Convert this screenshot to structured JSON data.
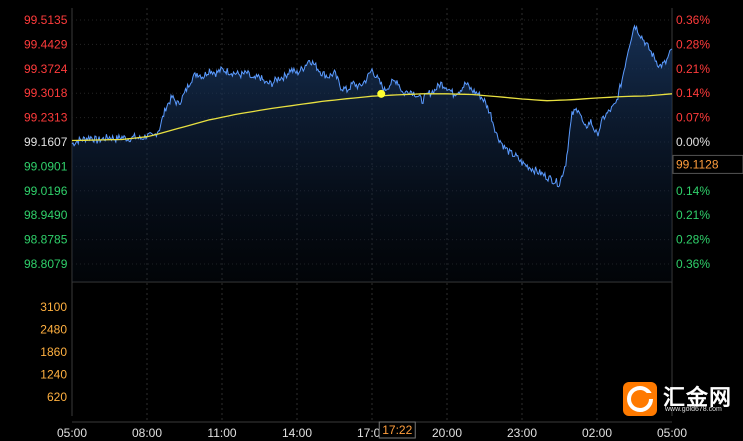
{
  "chart_data": {
    "type": "line",
    "price_axis": {
      "ticks": [
        "99.5135",
        "99.4429",
        "99.3724",
        "99.3018",
        "99.2313",
        "99.1607",
        "99.0901",
        "99.0196",
        "98.9490",
        "98.8785",
        "98.8079"
      ],
      "range": [
        98.8079,
        99.5135
      ],
      "base": 99.1607,
      "up_color": "#ff3b3b",
      "down_color": "#2fd06a",
      "base_color": "#e0e0e0"
    },
    "percent_axis": {
      "ticks": [
        "0.36%",
        "0.28%",
        "0.21%",
        "0.14%",
        "0.07%",
        "0.00%",
        "0.07%",
        "0.14%",
        "0.21%",
        "0.28%",
        "0.36%"
      ]
    },
    "current_price_label": "99.1128",
    "volume_axis": {
      "ticks": [
        "3100",
        "2480",
        "1860",
        "1240",
        "620"
      ],
      "color": "#ffb040"
    },
    "x_axis": {
      "ticks": [
        "05:00",
        "08:00",
        "11:00",
        "14:00",
        "17:00",
        "20:00",
        "23:00",
        "02:00",
        "05:00"
      ],
      "crosshair_label": "17:22"
    },
    "series": [
      {
        "color": "#5b9bff",
        "x_hours": [
          0,
          0.25,
          0.5,
          0.75,
          1,
          1.25,
          1.5,
          1.75,
          2,
          2.25,
          2.5,
          2.75,
          3,
          3.25,
          3.5,
          3.75,
          4,
          4.25,
          4.5,
          4.75,
          5,
          5.25,
          5.5,
          5.75,
          6,
          6.25,
          6.5,
          6.75,
          7,
          7.25,
          7.5,
          7.75,
          8,
          8.25,
          8.5,
          8.75,
          9,
          9.25,
          9.5,
          9.75,
          10,
          10.25,
          10.5,
          10.75,
          11,
          11.25,
          11.5,
          11.75,
          12,
          12.25,
          12.5,
          12.75,
          13,
          13.25,
          13.5,
          13.75,
          14,
          14.25,
          14.5,
          14.75,
          15,
          15.25,
          15.5,
          15.75,
          16,
          16.25,
          16.5,
          16.75,
          17,
          17.25,
          17.5,
          17.75,
          18,
          18.25,
          18.5,
          18.75,
          19,
          19.25,
          19.5,
          19.75,
          20,
          20.25,
          20.5,
          20.75,
          21,
          21.25,
          21.5,
          21.75,
          22,
          22.25,
          22.5,
          22.75,
          23,
          23.25,
          23.5,
          23.75,
          24
        ],
        "values": [
          99.155,
          99.165,
          99.17,
          99.175,
          99.165,
          99.17,
          99.175,
          99.17,
          99.175,
          99.17,
          99.175,
          99.17,
          99.18,
          99.175,
          99.2,
          99.26,
          99.29,
          99.27,
          99.3,
          99.34,
          99.36,
          99.35,
          99.37,
          99.36,
          99.37,
          99.365,
          99.36,
          99.355,
          99.36,
          99.34,
          99.35,
          99.33,
          99.33,
          99.345,
          99.35,
          99.37,
          99.36,
          99.375,
          99.4,
          99.38,
          99.36,
          99.35,
          99.36,
          99.32,
          99.31,
          99.33,
          99.32,
          99.34,
          99.37,
          99.34,
          99.31,
          99.33,
          99.34,
          99.3,
          99.31,
          99.3,
          99.28,
          99.3,
          99.31,
          99.33,
          99.32,
          99.3,
          99.31,
          99.33,
          99.31,
          99.3,
          99.28,
          99.24,
          99.18,
          99.15,
          99.13,
          99.12,
          99.1,
          99.09,
          99.08,
          99.07,
          99.06,
          99.05,
          99.04,
          99.1,
          99.24,
          99.26,
          99.2,
          99.22,
          99.18,
          99.23,
          99.25,
          99.27,
          99.34,
          99.43,
          99.5,
          99.47,
          99.44,
          99.41,
          99.38,
          99.39,
          99.43
        ]
      },
      {
        "color": "#e8e040",
        "x_hours": [
          0,
          2,
          2.5,
          3,
          3.5,
          4,
          4.5,
          5,
          5.5,
          6,
          6.5,
          7,
          7.5,
          8,
          9,
          10,
          11,
          12,
          13,
          14,
          15,
          16,
          17,
          18,
          19,
          20,
          21,
          22,
          23,
          24
        ],
        "values": [
          99.165,
          99.168,
          99.172,
          99.176,
          99.185,
          99.195,
          99.205,
          99.215,
          99.225,
          99.232,
          99.24,
          99.246,
          99.252,
          99.258,
          99.268,
          99.278,
          99.286,
          99.293,
          99.297,
          99.3,
          99.3,
          99.298,
          99.292,
          99.285,
          99.28,
          99.283,
          99.288,
          99.292,
          99.294,
          99.3
        ]
      }
    ],
    "marker": {
      "x_hours": 12.37,
      "value": 99.3,
      "color": "#ffff30"
    }
  },
  "brand": {
    "name": "汇金网",
    "url": "www.gold678.com",
    "accent": "#ff7a00"
  }
}
